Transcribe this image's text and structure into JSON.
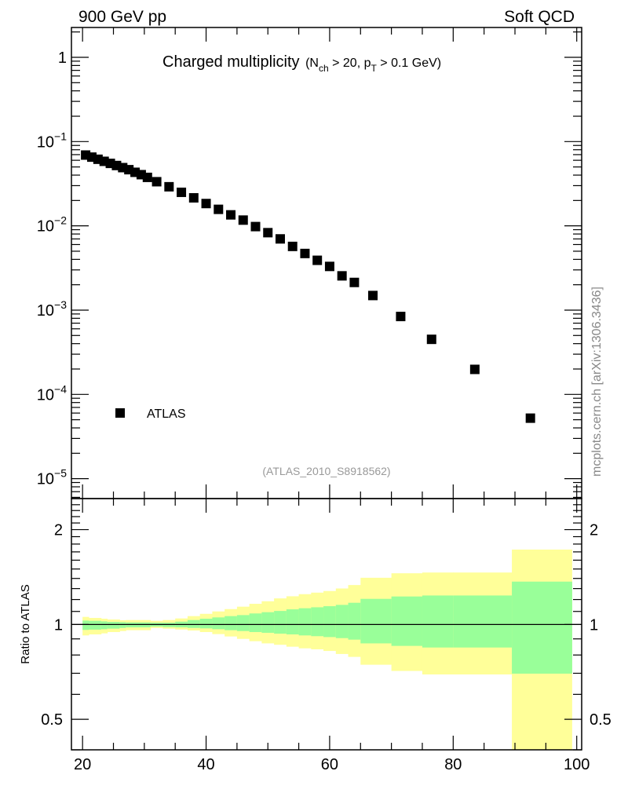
{
  "header": {
    "left": "900 GeV pp",
    "right": "Soft QCD"
  },
  "watermark": "mcplots.cern.ch [arXiv:1306.3436]",
  "chart_data": [
    {
      "type": "scatter",
      "title": "Charged multiplicity",
      "subtitle_parts": {
        "open": "(N",
        "sub1": "ch",
        "mid": " > 20, p",
        "sub2": "T",
        "close": " > 0.1 GeV)"
      },
      "analysis_label": "(ATLAS_2010_S8918562)",
      "xlim": [
        18.2,
        100.8
      ],
      "ylim": [
        5.8e-06,
        2.26
      ],
      "yscale": "log",
      "y_tick_labels": [
        {
          "value": 1,
          "base": "1",
          "exp": ""
        },
        {
          "value": 0.1,
          "base": "10",
          "exp": "−1"
        },
        {
          "value": 0.01,
          "base": "10",
          "exp": "−2"
        },
        {
          "value": 0.001,
          "base": "10",
          "exp": "−3"
        },
        {
          "value": 0.0001,
          "base": "10",
          "exp": "−4"
        },
        {
          "value": 1e-05,
          "base": "10",
          "exp": "−5"
        }
      ],
      "legend": {
        "entries": [
          "ATLAS"
        ],
        "placement": "bottom-left"
      },
      "series": [
        {
          "name": "ATLAS",
          "x": [
            20.5,
            21.5,
            22.5,
            23.5,
            24.5,
            25.5,
            26.5,
            27.5,
            28.5,
            29.5,
            30.5,
            32,
            34,
            36,
            38,
            40,
            42,
            44,
            46,
            48,
            50,
            52,
            54,
            56,
            58,
            60,
            62,
            64,
            67,
            71.5,
            76.5,
            83.5,
            92.5
          ],
          "y": [
            0.0692,
            0.0654,
            0.0617,
            0.0583,
            0.0551,
            0.052,
            0.0491,
            0.0464,
            0.0432,
            0.0405,
            0.0376,
            0.0334,
            0.0291,
            0.025,
            0.0215,
            0.0184,
            0.0157,
            0.0135,
            0.0117,
            0.0098,
            0.0083,
            0.007,
            0.0057,
            0.0047,
            0.0039,
            0.0033,
            0.00255,
            0.00213,
            0.00149,
            0.00084,
            0.00045,
            0.000198,
            5.22e-05
          ]
        }
      ]
    },
    {
      "type": "area",
      "ylabel": "Ratio to ATLAS",
      "xlim": [
        18.2,
        100.8
      ],
      "ylim": [
        0.4,
        2.51
      ],
      "yscale": "log",
      "x_tick_labels": [
        "20",
        "40",
        "60",
        "80",
        "100"
      ],
      "x_ticks": [
        20,
        40,
        60,
        80,
        100
      ],
      "y_tick_labels": [
        {
          "value": 2,
          "label": "2"
        },
        {
          "value": 1,
          "label": "1"
        },
        {
          "value": 0.5,
          "label": "0.5"
        }
      ],
      "reference_line": 1,
      "band_colors": {
        "outer": "#ffff99",
        "inner": "#99ff99"
      },
      "bins": [
        {
          "x": [
            20,
            21
          ],
          "outer": [
            0.923,
            1.057
          ],
          "inner": [
            0.961,
            1.029
          ]
        },
        {
          "x": [
            21,
            23
          ],
          "outer": [
            0.93,
            1.049
          ],
          "inner": [
            0.963,
            1.027
          ]
        },
        {
          "x": [
            23,
            24
          ],
          "outer": [
            0.937,
            1.043
          ],
          "inner": [
            0.966,
            1.023
          ]
        },
        {
          "x": [
            24,
            26
          ],
          "outer": [
            0.946,
            1.037
          ],
          "inner": [
            0.97,
            1.019
          ]
        },
        {
          "x": [
            26,
            27
          ],
          "outer": [
            0.953,
            1.031
          ],
          "inner": [
            0.975,
            1.017
          ]
        },
        {
          "x": [
            27,
            31
          ],
          "outer": [
            0.959,
            1.033
          ],
          "inner": [
            0.979,
            1.015
          ]
        },
        {
          "x": [
            31,
            33
          ],
          "outer": [
            0.975,
            1.027
          ],
          "inner": [
            0.985,
            1.013
          ]
        },
        {
          "x": [
            33,
            35
          ],
          "outer": [
            0.97,
            1.033
          ],
          "inner": [
            0.981,
            1.013
          ]
        },
        {
          "x": [
            35,
            37
          ],
          "outer": [
            0.964,
            1.045
          ],
          "inner": [
            0.979,
            1.021
          ]
        },
        {
          "x": [
            37,
            39
          ],
          "outer": [
            0.957,
            1.063
          ],
          "inner": [
            0.975,
            1.033
          ]
        },
        {
          "x": [
            39,
            41
          ],
          "outer": [
            0.946,
            1.081
          ],
          "inner": [
            0.972,
            1.043
          ]
        },
        {
          "x": [
            41,
            43
          ],
          "outer": [
            0.932,
            1.1
          ],
          "inner": [
            0.966,
            1.053
          ]
        },
        {
          "x": [
            43,
            45
          ],
          "outer": [
            0.916,
            1.119
          ],
          "inner": [
            0.959,
            1.063
          ]
        },
        {
          "x": [
            45,
            47
          ],
          "outer": [
            0.9,
            1.139
          ],
          "inner": [
            0.953,
            1.071
          ]
        },
        {
          "x": [
            47,
            49
          ],
          "outer": [
            0.885,
            1.163
          ],
          "inner": [
            0.946,
            1.084
          ]
        },
        {
          "x": [
            49,
            51
          ],
          "outer": [
            0.871,
            1.185
          ],
          "inner": [
            0.941,
            1.094
          ]
        },
        {
          "x": [
            51,
            53
          ],
          "outer": [
            0.862,
            1.21
          ],
          "inner": [
            0.935,
            1.104
          ]
        },
        {
          "x": [
            53,
            55
          ],
          "outer": [
            0.85,
            1.229
          ],
          "inner": [
            0.93,
            1.117
          ]
        },
        {
          "x": [
            55,
            57
          ],
          "outer": [
            0.84,
            1.248
          ],
          "inner": [
            0.923,
            1.126
          ]
        },
        {
          "x": [
            57,
            59
          ],
          "outer": [
            0.834,
            1.262
          ],
          "inner": [
            0.918,
            1.134
          ]
        },
        {
          "x": [
            59,
            61
          ],
          "outer": [
            0.824,
            1.277
          ],
          "inner": [
            0.912,
            1.143
          ]
        },
        {
          "x": [
            61,
            63
          ],
          "outer": [
            0.806,
            1.301
          ],
          "inner": [
            0.905,
            1.154
          ]
        },
        {
          "x": [
            63,
            65
          ],
          "outer": [
            0.789,
            1.334
          ],
          "inner": [
            0.895,
            1.172
          ]
        },
        {
          "x": [
            65,
            70
          ],
          "outer": [
            0.745,
            1.407
          ],
          "inner": [
            0.871,
            1.206
          ]
        },
        {
          "x": [
            70,
            75
          ],
          "outer": [
            0.712,
            1.454
          ],
          "inner": [
            0.855,
            1.227
          ]
        },
        {
          "x": [
            75,
            80
          ],
          "outer": [
            0.694,
            1.462
          ],
          "inner": [
            0.845,
            1.236
          ]
        },
        {
          "x": [
            80,
            89.5
          ],
          "outer": [
            0.694,
            1.462
          ],
          "inner": [
            0.845,
            1.236
          ]
        },
        {
          "x": [
            89.5,
            99.2
          ],
          "outer": [
            0.3,
            1.729
          ],
          "inner": [
            0.698,
            1.368
          ]
        }
      ]
    }
  ]
}
